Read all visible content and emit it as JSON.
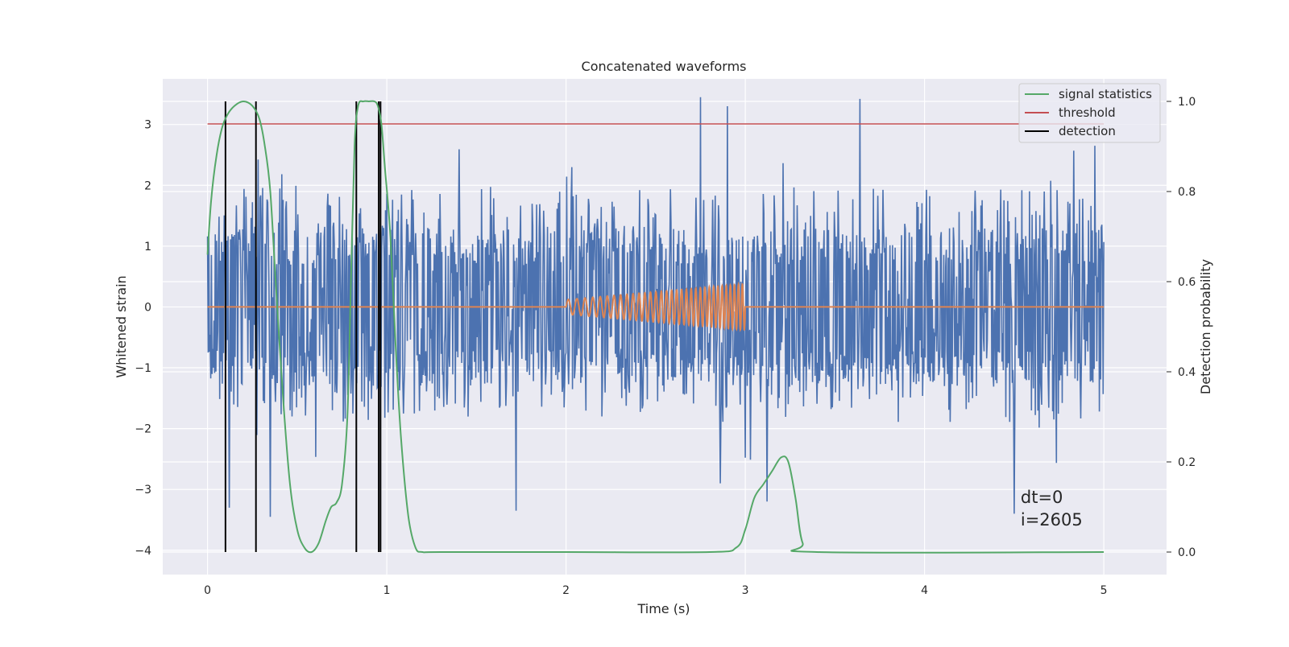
{
  "chart_data": {
    "type": "line",
    "title": "Concatenated waveforms",
    "xlabel": "Time (s)",
    "ylabel": "Whitened strain",
    "y2label": "Detection probability",
    "xlim": [
      -0.25,
      5.35
    ],
    "ylim": [
      -4.4,
      3.75
    ],
    "y2lim": [
      -0.05,
      1.05
    ],
    "xticks": [
      0,
      1,
      2,
      3,
      4,
      5
    ],
    "yticks": [
      -4,
      -3,
      -2,
      -1,
      0,
      1,
      2,
      3
    ],
    "y2ticks": [
      0.0,
      0.2,
      0.4,
      0.6,
      0.8,
      1.0
    ],
    "tick_labels": {
      "x": [
        "0",
        "1",
        "2",
        "3",
        "4",
        "5"
      ],
      "y": [
        "−4",
        "−3",
        "−2",
        "−1",
        "0",
        "1",
        "2",
        "3"
      ],
      "y2": [
        "0.0",
        "0.2",
        "0.4",
        "0.6",
        "0.8",
        "1.0"
      ]
    },
    "grid": true,
    "legend_position": "top-right",
    "legend": [
      "signal statistics",
      "threshold",
      "detection"
    ],
    "annotation": [
      "dt=0",
      "i=2605"
    ],
    "annotation_position": [
      4.5,
      -3.3
    ],
    "series": [
      {
        "kind": "noise",
        "color": "#4c72b0",
        "t_range": [
          0,
          5
        ],
        "center": 0,
        "samples": 1400,
        "typical_amplitude": [
          -1.9,
          2.0
        ],
        "extreme_peaks": [
          {
            "t": 2.75,
            "y": 3.45
          },
          {
            "t": 2.9,
            "y": 3.3
          },
          {
            "t": 3.64,
            "y": 3.42
          },
          {
            "t": 4.95,
            "y": 2.65
          },
          {
            "t": 4.5,
            "y": -3.4
          },
          {
            "t": 0.12,
            "y": -3.3
          },
          {
            "t": 0.35,
            "y": -3.45
          },
          {
            "t": 1.72,
            "y": -3.35
          },
          {
            "t": 2.86,
            "y": -2.9
          },
          {
            "t": 3.12,
            "y": -3.2
          }
        ]
      },
      {
        "kind": "chirp",
        "color": "#dd8452",
        "t_range": [
          0,
          5
        ],
        "chirp_start": 2.0,
        "chirp_end": 3.0,
        "amplitude_start": 0.12,
        "amplitude_end": 0.38,
        "cycles": 33
      },
      {
        "name": "signal statistics",
        "axis": "right",
        "color": "#55a868",
        "x": [
          0,
          0.02,
          0.05,
          0.08,
          0.11,
          0.15,
          0.2,
          0.25,
          0.29,
          0.32,
          0.35,
          0.38,
          0.42,
          0.46,
          0.5,
          0.54,
          0.58,
          0.62,
          0.66,
          0.69,
          0.72,
          0.75,
          0.78,
          0.8,
          0.82,
          0.84,
          0.87,
          0.9,
          0.93,
          0.95,
          0.97,
          0.99,
          1.02,
          1.05,
          1.08,
          1.12,
          1.16,
          1.2,
          1.3,
          2.0,
          2.8,
          2.95,
          3.0,
          3.05,
          3.1,
          3.15,
          3.2,
          3.24,
          3.28,
          3.32,
          3.4,
          5.0
        ],
        "y": [
          0.66,
          0.78,
          0.88,
          0.94,
          0.97,
          0.99,
          1.0,
          0.99,
          0.96,
          0.9,
          0.8,
          0.6,
          0.35,
          0.15,
          0.05,
          0.01,
          0.0,
          0.02,
          0.07,
          0.1,
          0.11,
          0.15,
          0.3,
          0.6,
          0.9,
          0.99,
          1.0,
          1.0,
          1.0,
          0.99,
          0.95,
          0.85,
          0.7,
          0.45,
          0.25,
          0.08,
          0.01,
          0.0,
          0.0,
          0.0,
          0.0,
          0.01,
          0.05,
          0.12,
          0.15,
          0.18,
          0.21,
          0.2,
          0.12,
          0.02,
          0.0,
          0.0
        ]
      },
      {
        "name": "threshold",
        "axis": "right",
        "color": "#c44e52",
        "x": [
          0,
          5
        ],
        "y": [
          0.95,
          0.95
        ]
      },
      {
        "name": "detection",
        "axis": "right",
        "color": "#000000",
        "type": "vlines",
        "x": [
          0.1,
          0.27,
          0.83,
          0.955,
          0.965
        ],
        "ymin": 0.0,
        "ymax": 1.0
      }
    ]
  }
}
